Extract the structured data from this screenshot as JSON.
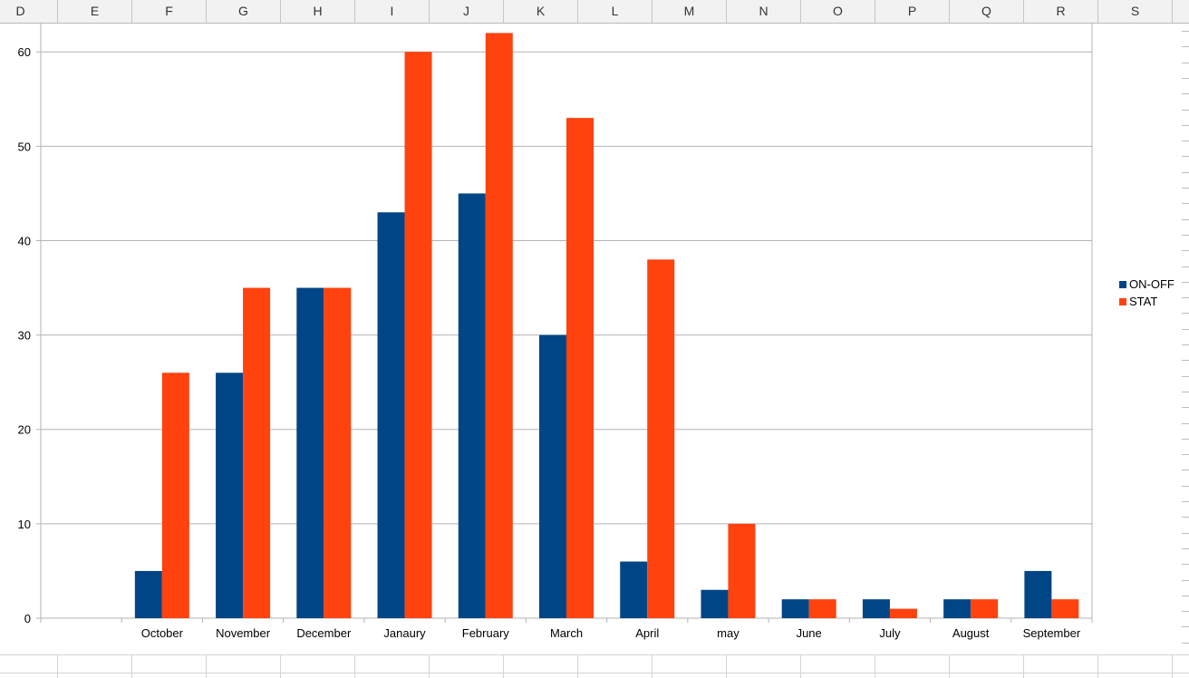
{
  "sheet": {
    "columns": [
      "D",
      "E",
      "F",
      "G",
      "H",
      "I",
      "J",
      "K",
      "L",
      "M",
      "N",
      "O",
      "P",
      "Q",
      "R",
      "S"
    ]
  },
  "colors": {
    "on_off": "#004586",
    "stat": "#ff420e",
    "grid": "#b3b3b3",
    "axis": "#b3b3b3"
  },
  "chart_data": {
    "type": "bar",
    "title": "",
    "xlabel": "",
    "ylabel": "",
    "categories": [
      "",
      "October",
      "November",
      "December",
      "Janaury",
      "February",
      "March",
      "April",
      "may",
      "June",
      "July",
      "August",
      "September"
    ],
    "series": [
      {
        "name": "ON-OFF",
        "values": [
          null,
          5,
          26,
          35,
          43,
          45,
          30,
          6,
          3,
          2,
          2,
          2,
          5
        ]
      },
      {
        "name": "STAT",
        "values": [
          null,
          26,
          35,
          35,
          60,
          62,
          53,
          38,
          10,
          2,
          1,
          2,
          2
        ]
      }
    ],
    "ylim": [
      0,
      63
    ],
    "yticks": [
      0,
      10,
      20,
      30,
      40,
      50,
      60
    ],
    "grid": true,
    "legend": "right"
  }
}
